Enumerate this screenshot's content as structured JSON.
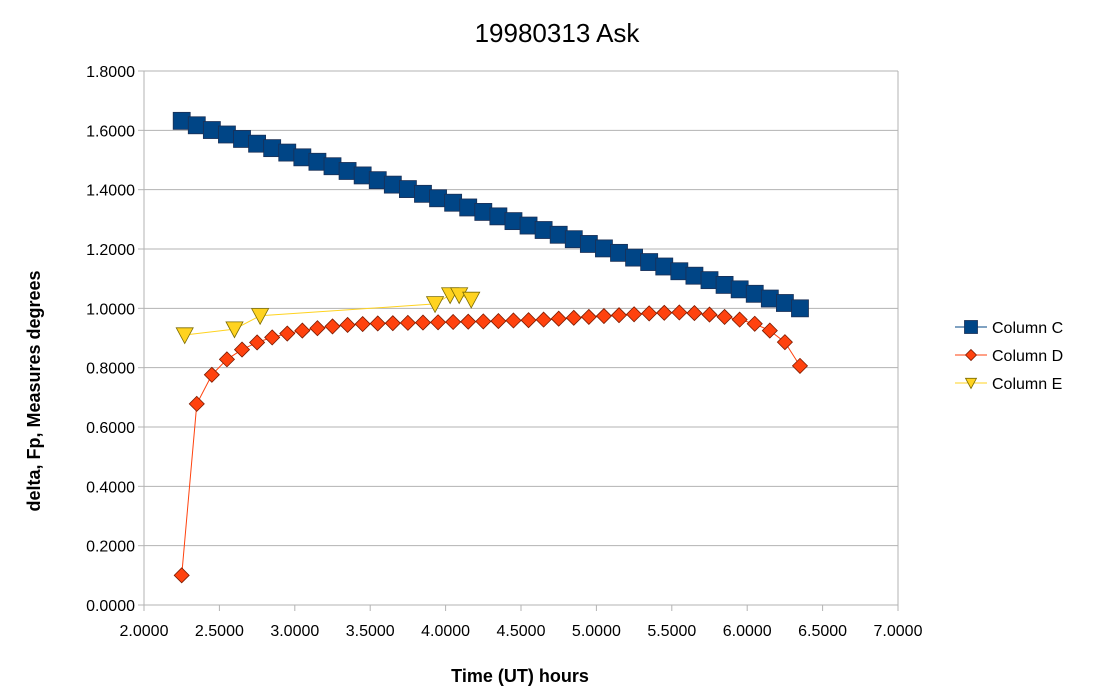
{
  "chart_data": {
    "type": "scatter",
    "title": "19980313 Ask",
    "xlabel": "Time (UT) hours",
    "ylabel": "delta, Fp, Measures degrees",
    "xlim": [
      2.0,
      7.0
    ],
    "ylim": [
      0.0,
      1.8
    ],
    "x_ticks": [
      "2.0000",
      "2.5000",
      "3.0000",
      "3.5000",
      "4.0000",
      "4.5000",
      "5.0000",
      "5.5000",
      "6.0000",
      "6.5000",
      "7.0000"
    ],
    "y_ticks": [
      "0.0000",
      "0.2000",
      "0.4000",
      "0.6000",
      "0.8000",
      "1.0000",
      "1.2000",
      "1.4000",
      "1.6000",
      "1.8000"
    ],
    "grid": "horizontal",
    "legend_position": "right",
    "series": [
      {
        "name": "Column C",
        "color": "#004586",
        "marker": "square",
        "x": [
          2.25,
          2.35,
          2.45,
          2.55,
          2.65,
          2.75,
          2.85,
          2.95,
          3.05,
          3.15,
          3.25,
          3.35,
          3.45,
          3.55,
          3.65,
          3.75,
          3.85,
          3.95,
          4.05,
          4.15,
          4.25,
          4.35,
          4.45,
          4.55,
          4.65,
          4.75,
          4.85,
          4.95,
          5.05,
          5.15,
          5.25,
          5.35,
          5.45,
          5.55,
          5.65,
          5.75,
          5.85,
          5.95,
          6.05,
          6.15,
          6.25,
          6.35
        ],
        "y": [
          1.632,
          1.617,
          1.601,
          1.586,
          1.571,
          1.555,
          1.54,
          1.525,
          1.509,
          1.494,
          1.479,
          1.463,
          1.448,
          1.432,
          1.417,
          1.402,
          1.386,
          1.371,
          1.356,
          1.34,
          1.325,
          1.31,
          1.294,
          1.279,
          1.264,
          1.248,
          1.233,
          1.217,
          1.202,
          1.187,
          1.171,
          1.156,
          1.141,
          1.125,
          1.11,
          1.095,
          1.079,
          1.064,
          1.049,
          1.033,
          1.018,
          1.0
        ]
      },
      {
        "name": "Column D",
        "color": "#ff420e",
        "marker": "diamond",
        "x": [
          2.25,
          2.35,
          2.45,
          2.55,
          2.65,
          2.75,
          2.85,
          2.95,
          3.05,
          3.15,
          3.25,
          3.35,
          3.45,
          3.55,
          3.65,
          3.75,
          3.85,
          3.95,
          4.05,
          4.15,
          4.25,
          4.35,
          4.45,
          4.55,
          4.65,
          4.75,
          4.85,
          4.95,
          5.05,
          5.15,
          5.25,
          5.35,
          5.45,
          5.55,
          5.65,
          5.75,
          5.85,
          5.95,
          6.05,
          6.15,
          6.25,
          6.35
        ],
        "y": [
          0.1,
          0.678,
          0.776,
          0.828,
          0.861,
          0.885,
          0.902,
          0.915,
          0.925,
          0.933,
          0.939,
          0.944,
          0.947,
          0.949,
          0.95,
          0.951,
          0.952,
          0.953,
          0.954,
          0.955,
          0.956,
          0.957,
          0.959,
          0.96,
          0.962,
          0.965,
          0.968,
          0.971,
          0.974,
          0.977,
          0.98,
          0.983,
          0.985,
          0.986,
          0.984,
          0.979,
          0.971,
          0.962,
          0.948,
          0.925,
          0.886,
          0.806
        ]
      },
      {
        "name": "Column E",
        "color": "#ffd320",
        "marker": "triangle-down",
        "x": [
          2.27,
          2.6,
          2.77,
          3.93,
          4.03,
          4.09,
          4.17
        ],
        "y": [
          0.91,
          0.93,
          0.975,
          1.015,
          1.045,
          1.045,
          1.03
        ]
      }
    ]
  }
}
